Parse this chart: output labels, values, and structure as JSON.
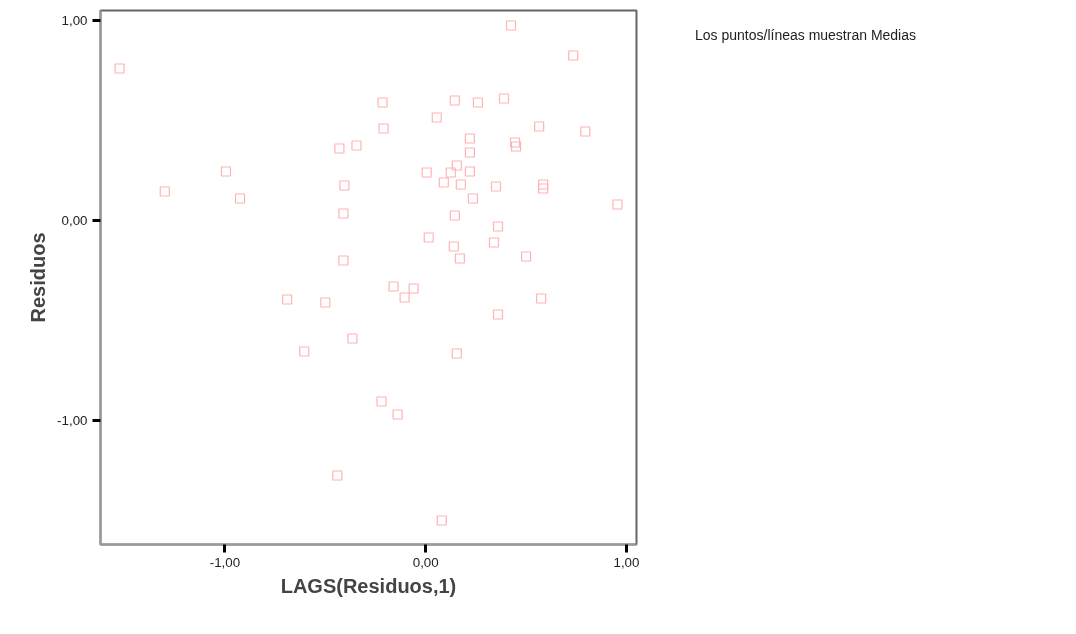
{
  "chart_data": {
    "type": "scatter",
    "xlabel": "LAGS(Residuos,1)",
    "ylabel": "Residuos",
    "annotations": [
      "Los puntos/líneas muestran Medias"
    ],
    "xlim": [
      -1.62,
      1.05
    ],
    "ylim": [
      -1.62,
      1.05
    ],
    "xticks": [
      {
        "value": -1,
        "label": "-1,00"
      },
      {
        "value": 0,
        "label": "0,00"
      },
      {
        "value": 1,
        "label": "1,00"
      }
    ],
    "yticks": [
      {
        "value": -1,
        "label": "-1,00"
      },
      {
        "value": 0,
        "label": "0,00"
      },
      {
        "value": 1,
        "label": "1,00"
      }
    ],
    "grid": false,
    "marker": "square",
    "series": [
      {
        "color": "#ffb3b3",
        "x": [
          -1.525,
          -1.3,
          -0.995,
          -0.925,
          -0.69,
          -0.605,
          -0.5,
          -0.43,
          -0.405,
          -0.41,
          -0.41,
          -0.44,
          -0.365,
          -0.345,
          -0.215,
          -0.21,
          -0.22,
          -0.16,
          -0.14,
          -0.105,
          -0.06,
          0.005,
          0.015,
          0.055,
          0.09,
          0.08,
          0.125,
          0.145,
          0.155,
          0.145,
          0.14,
          0.155,
          0.175,
          0.22,
          0.22,
          0.22,
          0.235,
          0.26,
          0.17,
          0.34,
          0.36,
          0.35,
          0.36,
          0.39,
          0.425,
          0.445,
          0.45,
          0.5,
          0.565,
          0.575,
          0.585,
          0.585,
          0.735,
          0.795,
          0.955
        ],
        "values": [
          0.76,
          0.145,
          0.245,
          0.11,
          -0.395,
          -0.655,
          -0.41,
          0.36,
          0.175,
          0.035,
          -0.2,
          -1.275,
          -0.59,
          0.375,
          0.59,
          0.46,
          -0.905,
          -0.33,
          -0.97,
          -0.385,
          -0.34,
          0.24,
          -0.085,
          0.515,
          0.19,
          -1.5,
          0.24,
          0.6,
          0.275,
          0.025,
          -0.13,
          -0.665,
          0.18,
          0.41,
          0.34,
          0.245,
          0.11,
          0.59,
          -0.19,
          -0.11,
          -0.03,
          0.17,
          -0.47,
          0.61,
          0.975,
          0.39,
          0.37,
          -0.18,
          0.47,
          -0.39,
          0.18,
          0.16,
          0.825,
          0.445,
          0.08
        ]
      }
    ]
  }
}
